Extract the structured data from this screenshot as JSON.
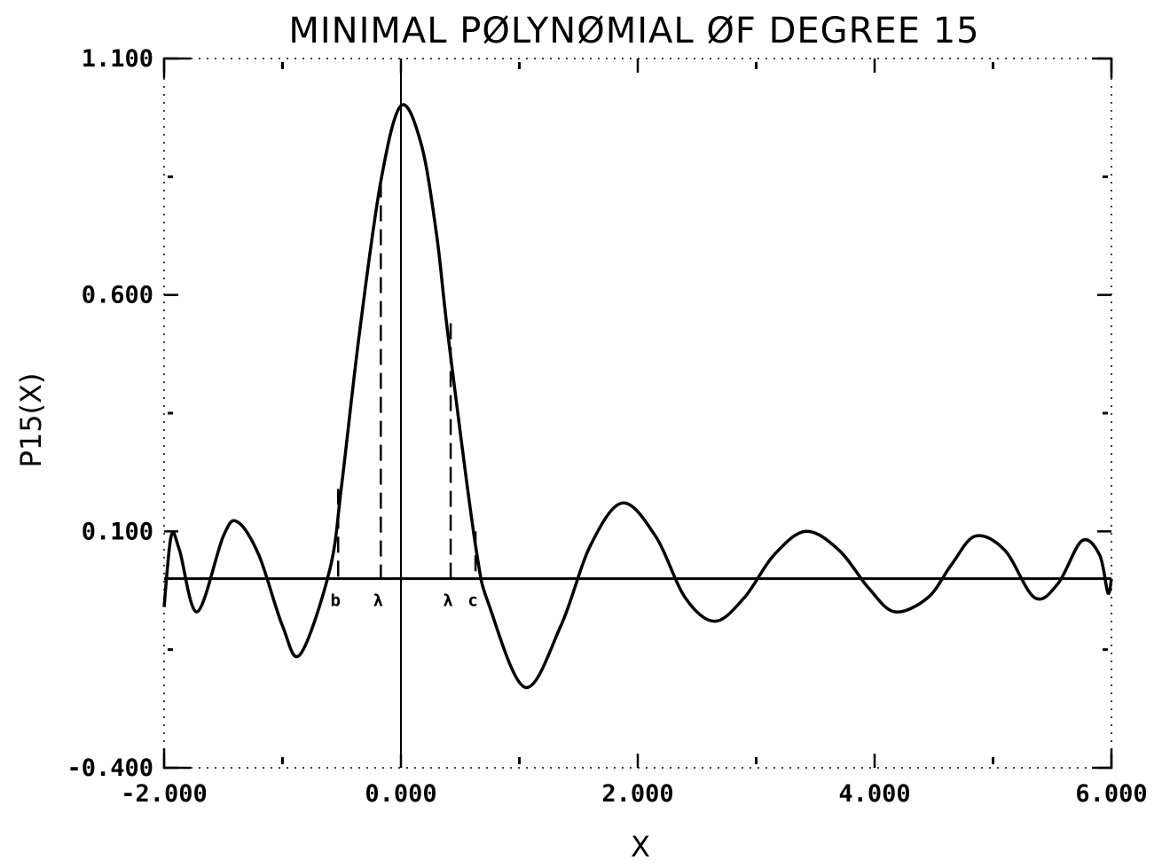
{
  "chart_data": {
    "type": "line",
    "title": "MINIMAL PØLYNØMIAL ØF DEGREE 15",
    "xlabel": "X",
    "ylabel": "P15(X)",
    "xlim": [
      -2.0,
      6.0
    ],
    "ylim": [
      -0.4,
      1.1
    ],
    "x_ticks": [
      -2.0,
      0.0,
      2.0,
      4.0,
      6.0
    ],
    "x_tick_labels": [
      "-2.000",
      "0.000",
      "2.000",
      "4.000",
      "6.000"
    ],
    "y_ticks": [
      -0.4,
      0.1,
      0.6,
      1.1
    ],
    "y_tick_labels": [
      "-0.400",
      "0.100",
      "0.600",
      "1.100"
    ],
    "grid": false,
    "legend": "none",
    "zero_line": true,
    "series": [
      {
        "x": [
          -2.0,
          -1.94,
          -1.87,
          -1.72,
          -1.5,
          -1.38,
          -1.2,
          -1.0,
          -0.85,
          -0.6,
          -0.5,
          -0.35,
          -0.17,
          0.0,
          0.17,
          0.3,
          0.4,
          0.63,
          0.75,
          1.05,
          1.35,
          1.6,
          1.87,
          2.15,
          2.4,
          2.65,
          2.9,
          3.15,
          3.42,
          3.7,
          3.95,
          4.17,
          4.45,
          4.65,
          4.85,
          5.1,
          5.35,
          5.55,
          5.75,
          5.9,
          5.97,
          6.0
        ],
        "y": [
          -0.06,
          0.09,
          0.06,
          -0.07,
          0.09,
          0.12,
          0.05,
          -0.1,
          -0.16,
          0.02,
          0.2,
          0.52,
          0.84,
          1.0,
          0.92,
          0.73,
          0.51,
          0.07,
          -0.06,
          -0.23,
          -0.1,
          0.07,
          0.16,
          0.09,
          -0.04,
          -0.09,
          -0.04,
          0.05,
          0.1,
          0.06,
          -0.02,
          -0.07,
          -0.04,
          0.03,
          0.09,
          0.06,
          -0.04,
          -0.01,
          0.08,
          0.05,
          -0.03,
          0.0
        ]
      }
    ],
    "markers": [
      {
        "label": "b",
        "x": -0.53,
        "y": 0.19
      },
      {
        "label": "λ",
        "x": -0.17,
        "y": 0.84
      },
      {
        "label": "λ",
        "x": 0.42,
        "y": 0.54
      },
      {
        "label": "c",
        "x": 0.63,
        "y": 0.1
      }
    ]
  }
}
